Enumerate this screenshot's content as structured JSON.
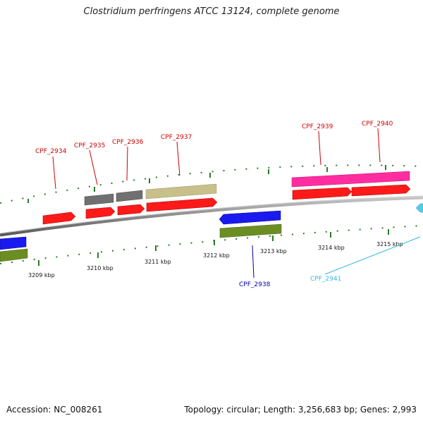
{
  "title": "Clostridium perfringens ATCC 13124, complete genome",
  "footer": {
    "accession": "Accession: NC_008261",
    "summary": "Topology: circular; Length: 3,256,683 bp; Genes: 2,993"
  },
  "scale_ticks": [
    "3209 kbp",
    "3210 kbp",
    "3211 kbp",
    "3212 kbp",
    "3213 kbp",
    "3214 kbp",
    "3215 kbp"
  ],
  "genes": [
    {
      "id": "CPF_2934",
      "color": "#cc0000"
    },
    {
      "id": "CPF_2935",
      "color": "#cc0000"
    },
    {
      "id": "CPF_2936",
      "color": "#cc0000"
    },
    {
      "id": "CPF_2937",
      "color": "#cc0000"
    },
    {
      "id": "CPF_2938",
      "color": "#0000aa"
    },
    {
      "id": "CPF_2939",
      "color": "#cc0000"
    },
    {
      "id": "CPF_2940",
      "color": "#cc0000"
    },
    {
      "id": "CPF_2941",
      "color": "#33bbdd"
    }
  ],
  "colors": {
    "cds_forward": "#ff1a1a",
    "cds_reverse": "#1a1aee",
    "gene_pink": "#ff2da0",
    "gene_khaki": "#c8c08a",
    "gene_gray": "#707070",
    "gene_olive": "#6b8e23",
    "gene_cyan": "#55ccee",
    "backbone": "#888888",
    "tick": "#2a7a2a"
  }
}
